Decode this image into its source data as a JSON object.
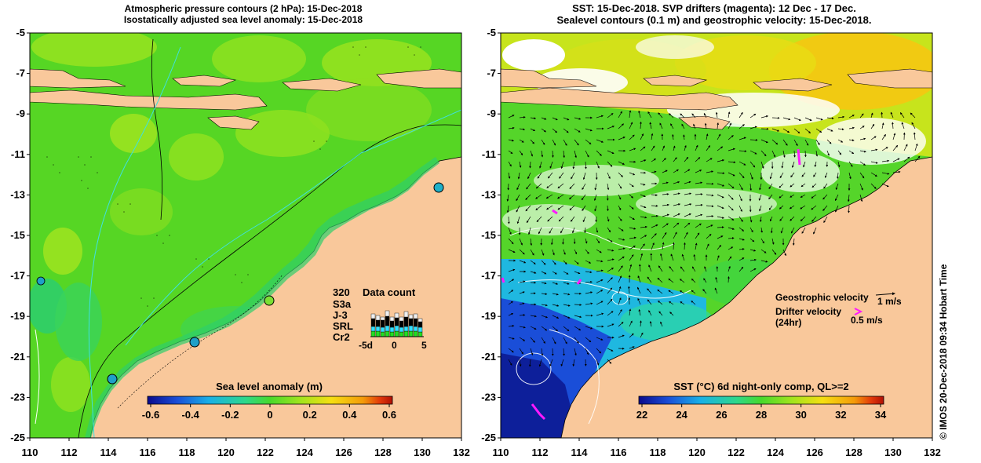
{
  "left_panel": {
    "title_line1": "Atmospheric pressure contours (2 hPa): 15-Dec-2018",
    "title_line2": "Isostatically adjusted sea level anomaly: 15-Dec-2018",
    "y_ticks": [
      "-5",
      "-7",
      "-9",
      "-11",
      "-13",
      "-15",
      "-17",
      "-19",
      "-21",
      "-23",
      "-25"
    ],
    "x_ticks": [
      "110",
      "112",
      "114",
      "116",
      "118",
      "120",
      "122",
      "124",
      "126",
      "128",
      "130",
      "132"
    ],
    "colorbar": {
      "label": "Sea level anomaly (m)",
      "ticks": [
        "-0.6",
        "-0.4",
        "-0.2",
        "0",
        "0.2",
        "0.4",
        "0.6"
      ]
    },
    "data_count": {
      "title": "Data count",
      "max": "320",
      "satellites": [
        {
          "name": "S3a",
          "color": "#f0f0f0"
        },
        {
          "name": "J-3",
          "color": "#000000"
        },
        {
          "name": "SRL",
          "color": "#33e0ff"
        },
        {
          "name": "Cr2",
          "color": "#22dd22"
        }
      ],
      "axis_ticks": [
        "-5d",
        "0",
        "5"
      ]
    }
  },
  "right_panel": {
    "title_line1": "SST: 15-Dec-2018. SVP drifters (magenta): 12 Dec - 17 Dec.",
    "title_line2": "Sealevel contours (0.1 m) and geostrophic velocity: 15-Dec-2018.",
    "y_ticks": [
      "-5",
      "-7",
      "-9",
      "-11",
      "-13",
      "-15",
      "-17",
      "-19",
      "-21",
      "-23",
      "-25"
    ],
    "x_ticks": [
      "110",
      "112",
      "114",
      "116",
      "118",
      "120",
      "122",
      "124",
      "126",
      "128",
      "130",
      "132"
    ],
    "legend": {
      "geostrophic": "Geostrophic velocity",
      "geostrophic_scale": "1 m/s",
      "drifter": "Drifter velocity",
      "drifter_period": "(24hr)",
      "drifter_scale": "0.5 m/s"
    },
    "colorbar": {
      "label": "SST (°C) 6d night-only comp, QL>=2",
      "ticks": [
        "22",
        "24",
        "26",
        "28",
        "30",
        "32",
        "34"
      ]
    }
  },
  "credit": "© IMOS 20-Dec-2018 09:34 Hobart Time",
  "colors": {
    "land": "#f9c89b",
    "ocean_green": "#55d522",
    "cbar_sla": [
      "#0a0a8c",
      "#1a4ed8",
      "#19b0e8",
      "#2ed88a",
      "#48d92b",
      "#9ee41e",
      "#f5df12",
      "#f49b0a",
      "#e2380a",
      "#b01005"
    ],
    "cbar_sst": [
      "#0a0a8c",
      "#1a4ed8",
      "#19b0e8",
      "#2ed88a",
      "#48d92b",
      "#9ee41e",
      "#f5df12",
      "#f49b0a",
      "#e2380a",
      "#b01005"
    ]
  }
}
